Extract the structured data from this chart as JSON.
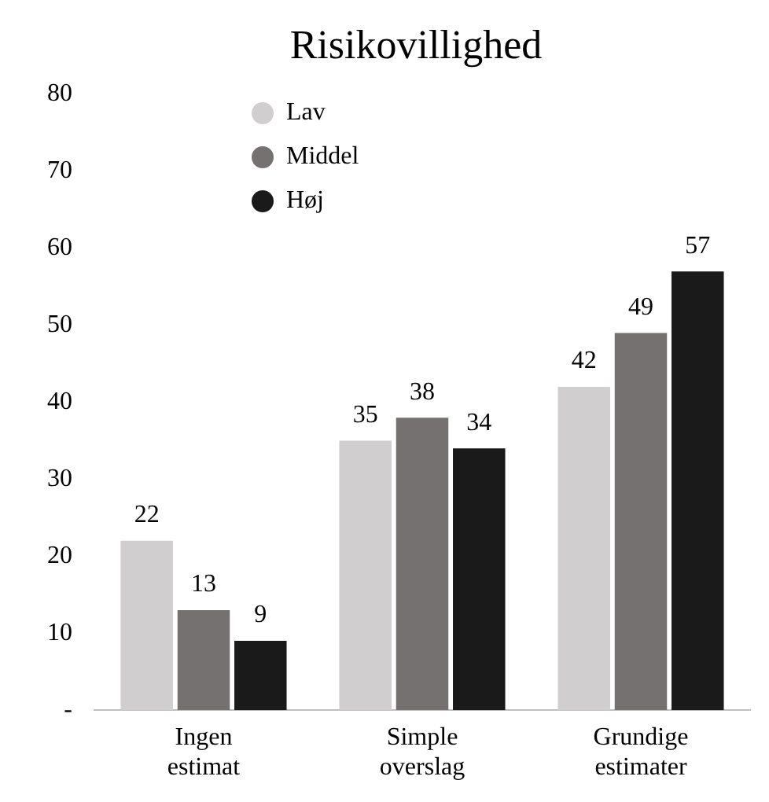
{
  "chart_data": {
    "type": "bar",
    "title": "Risikovillighed",
    "categories": [
      "Ingen estimat",
      "Simple overslag",
      "Grundige estimater"
    ],
    "series": [
      {
        "name": "Lav",
        "color": "#d0cece",
        "values": [
          22,
          35,
          42
        ]
      },
      {
        "name": "Middel",
        "color": "#767171",
        "values": [
          13,
          38,
          49
        ]
      },
      {
        "name": "Høj",
        "color": "#1a1a1a",
        "values": [
          9,
          34,
          57
        ]
      }
    ],
    "ylim": [
      0,
      80
    ],
    "yticks": [
      {
        "value": 0,
        "label": "-"
      },
      10,
      20,
      30,
      40,
      50,
      60,
      70,
      80
    ],
    "grid": false,
    "legend": "top left",
    "data_labels": true
  }
}
